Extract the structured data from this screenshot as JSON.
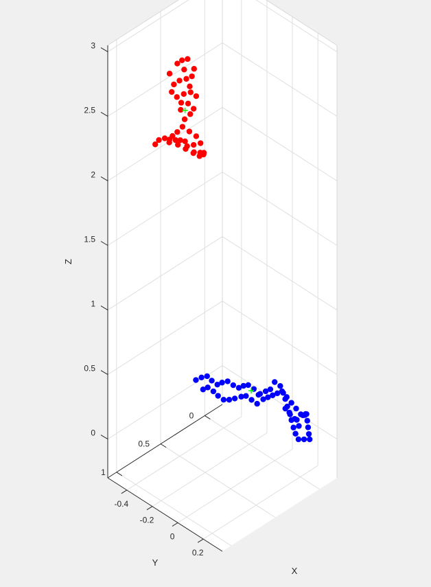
{
  "chart_data": {
    "type": "scatter",
    "projection": "3d",
    "title": "",
    "xlabel": "X",
    "ylabel": "Y",
    "zlabel": "Z",
    "xlim": [
      -0.55,
      0.35
    ],
    "ylim": [
      -0.2,
      1.1
    ],
    "zlim": [
      -0.3,
      3.05
    ],
    "xticks": [
      -0.4,
      -0.2,
      0,
      0.2
    ],
    "xtick_labels": [
      "-0.4",
      "-0.2",
      "0",
      "0.2"
    ],
    "yticks": [
      0,
      0.5,
      1
    ],
    "ytick_labels": [
      "0",
      "0.5",
      "1"
    ],
    "zticks": [
      0,
      0.5,
      1,
      1.5,
      2,
      2.5,
      3
    ],
    "ztick_labels": [
      "0",
      "0.5",
      "1",
      "1.5",
      "2",
      "2.5",
      "3"
    ],
    "grid": true,
    "legend": "none",
    "background_color": "#f0f0f0",
    "axes_color": "#ffffff",
    "series": [
      {
        "color": "#ff0000",
        "marker": "filled circle",
        "points": [
          [
            -0.35,
            0.85,
            2.3
          ],
          [
            -0.31,
            0.8,
            2.35
          ],
          [
            -0.27,
            0.77,
            2.38
          ],
          [
            -0.23,
            0.74,
            2.36
          ],
          [
            -0.19,
            0.72,
            2.33
          ],
          [
            -0.15,
            0.7,
            2.3
          ],
          [
            -0.12,
            0.68,
            2.28
          ],
          [
            -0.1,
            0.66,
            2.31
          ],
          [
            -0.13,
            0.62,
            2.26
          ],
          [
            -0.17,
            0.6,
            2.24
          ],
          [
            -0.21,
            0.62,
            2.22
          ],
          [
            -0.25,
            0.65,
            2.24
          ],
          [
            -0.29,
            0.68,
            2.26
          ],
          [
            -0.33,
            0.72,
            2.27
          ],
          [
            -0.37,
            0.78,
            2.29
          ],
          [
            -0.22,
            0.7,
            2.34
          ],
          [
            -0.18,
            0.66,
            2.32
          ],
          [
            -0.26,
            0.73,
            2.4
          ],
          [
            -0.24,
            0.7,
            2.44
          ],
          [
            -0.2,
            0.68,
            2.42
          ],
          [
            -0.16,
            0.66,
            2.4
          ],
          [
            -0.28,
            0.72,
            2.32
          ],
          [
            -0.14,
            0.64,
            2.35
          ],
          [
            -0.3,
            0.76,
            2.33
          ],
          [
            -0.23,
            0.69,
            2.5
          ],
          [
            -0.2,
            0.67,
            2.55
          ],
          [
            -0.18,
            0.66,
            2.6
          ],
          [
            -0.21,
            0.68,
            2.63
          ],
          [
            -0.25,
            0.7,
            2.62
          ],
          [
            -0.27,
            0.72,
            2.66
          ],
          [
            -0.23,
            0.7,
            2.7
          ],
          [
            -0.19,
            0.68,
            2.73
          ],
          [
            -0.16,
            0.66,
            2.71
          ],
          [
            -0.28,
            0.74,
            2.76
          ],
          [
            -0.25,
            0.72,
            2.8
          ],
          [
            -0.21,
            0.7,
            2.83
          ],
          [
            -0.18,
            0.68,
            2.86
          ],
          [
            -0.22,
            0.71,
            2.9
          ],
          [
            -0.26,
            0.73,
            2.93
          ],
          [
            -0.23,
            0.72,
            2.97
          ],
          [
            -0.2,
            0.7,
            2.99
          ],
          [
            -0.19,
            0.69,
            2.78
          ],
          [
            -0.3,
            0.76,
            2.84
          ],
          [
            -0.29,
            0.75,
            2.7
          ],
          [
            -0.17,
            0.67,
            2.92
          ],
          [
            -0.24,
            0.72,
            2.58
          ]
        ]
      },
      {
        "color": "#00ff00",
        "marker": "plus",
        "points": [
          [
            -0.22,
            0.7,
            2.58
          ]
        ]
      },
      {
        "color": "#0000ff",
        "marker": "filled circle",
        "points": [
          [
            -0.55,
            0.1,
            0.02
          ],
          [
            -0.52,
            0.08,
            0.05
          ],
          [
            -0.49,
            0.06,
            0.07
          ],
          [
            -0.46,
            0.05,
            0.05
          ],
          [
            -0.43,
            0.03,
            0.03
          ],
          [
            -0.4,
            0.02,
            0.06
          ],
          [
            -0.37,
            0.0,
            0.08
          ],
          [
            -0.34,
            -0.02,
            0.06
          ],
          [
            -0.31,
            -0.04,
            0.05
          ],
          [
            -0.28,
            -0.05,
            0.08
          ],
          [
            -0.25,
            -0.06,
            0.1
          ],
          [
            -0.22,
            -0.08,
            0.08
          ],
          [
            -0.19,
            -0.09,
            0.05
          ],
          [
            -0.16,
            -0.1,
            0.03
          ],
          [
            -0.13,
            -0.11,
            0.06
          ],
          [
            -0.1,
            -0.12,
            0.09
          ],
          [
            -0.07,
            -0.13,
            0.12
          ],
          [
            -0.04,
            -0.14,
            0.15
          ],
          [
            -0.01,
            -0.15,
            0.12
          ],
          [
            0.02,
            -0.16,
            0.09
          ],
          [
            0.05,
            -0.17,
            0.06
          ],
          [
            0.08,
            -0.18,
            0.03
          ],
          [
            0.11,
            -0.16,
            0.05
          ],
          [
            0.14,
            -0.14,
            0.08
          ],
          [
            0.16,
            -0.12,
            0.11
          ],
          [
            0.18,
            -0.1,
            0.13
          ],
          [
            0.2,
            -0.08,
            0.1
          ],
          [
            0.22,
            -0.06,
            0.07
          ],
          [
            0.24,
            -0.04,
            0.04
          ],
          [
            0.26,
            -0.02,
            0.02
          ],
          [
            0.23,
            0.0,
            0.01
          ],
          [
            0.2,
            0.02,
            0.0
          ],
          [
            0.17,
            0.01,
            0.02
          ],
          [
            0.14,
            -0.01,
            0.04
          ],
          [
            0.11,
            -0.03,
            0.07
          ],
          [
            0.08,
            -0.05,
            0.1
          ],
          [
            0.05,
            -0.07,
            0.12
          ],
          [
            0.02,
            -0.09,
            0.15
          ],
          [
            -0.01,
            -0.11,
            0.17
          ],
          [
            -0.04,
            -0.12,
            0.2
          ],
          [
            -0.07,
            -0.1,
            0.22
          ],
          [
            -0.3,
            0.02,
            0.0
          ],
          [
            -0.33,
            0.04,
            -0.02
          ],
          [
            -0.36,
            0.06,
            -0.03
          ],
          [
            -0.39,
            0.08,
            -0.01
          ],
          [
            -0.42,
            0.09,
            0.01
          ],
          [
            -0.45,
            0.11,
            0.03
          ],
          [
            -0.48,
            0.12,
            0.0
          ],
          [
            -0.27,
            -0.01,
            0.02
          ],
          [
            -0.24,
            -0.02,
            0.04
          ],
          [
            -0.21,
            -0.04,
            0.02
          ],
          [
            -0.18,
            -0.06,
            0.0
          ],
          [
            0.0,
            -0.12,
            0.05
          ],
          [
            0.03,
            -0.13,
            0.02
          ],
          [
            0.06,
            -0.14,
            0.0
          ],
          [
            0.09,
            -0.12,
            0.02
          ],
          [
            0.12,
            -0.1,
            0.0
          ],
          [
            -0.15,
            -0.05,
            0.1
          ],
          [
            -0.12,
            -0.07,
            0.13
          ],
          [
            -0.09,
            -0.08,
            0.16
          ]
        ]
      },
      {
        "color": "#00ff00",
        "marker": "plus",
        "points": [
          [
            -0.22,
            -0.05,
            0.08
          ]
        ]
      }
    ]
  }
}
